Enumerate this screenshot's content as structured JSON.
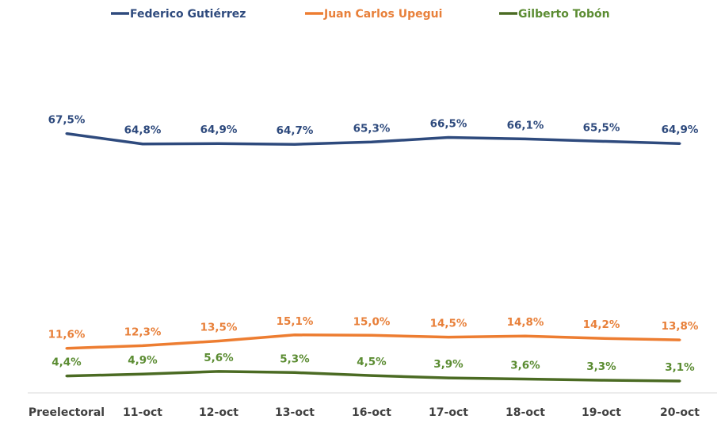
{
  "chart_data": {
    "type": "line",
    "title": "",
    "xlabel": "",
    "ylabel": "",
    "legend_position": "top",
    "grid": false,
    "ylim": [
      0,
      70
    ],
    "categories": [
      "Preelectoral",
      "11-oct",
      "12-oct",
      "13-oct",
      "16-oct",
      "17-oct",
      "18-oct",
      "19-oct",
      "20-oct"
    ],
    "series": [
      {
        "name": "Federico Gutiérrez",
        "color": "#2e4a7d",
        "label_color": "#2e4a7d",
        "values": [
          67.5,
          64.8,
          64.9,
          64.7,
          65.3,
          66.5,
          66.1,
          65.5,
          64.9
        ],
        "labels": [
          "67,5%",
          "64,8%",
          "64,9%",
          "64,7%",
          "65,3%",
          "66,5%",
          "66,1%",
          "65,5%",
          "64,9%"
        ]
      },
      {
        "name": "Juan Carlos Upegui",
        "color": "#ed7d31",
        "label_color": "#e8803a",
        "values": [
          11.6,
          12.3,
          13.5,
          15.1,
          15.0,
          14.5,
          14.8,
          14.2,
          13.8
        ],
        "labels": [
          "11,6%",
          "12,3%",
          "13,5%",
          "15,1%",
          "15,0%",
          "14,5%",
          "14,8%",
          "14,2%",
          "13,8%"
        ]
      },
      {
        "name": "Gilberto Tobón",
        "color": "#4b6b23",
        "label_color": "#5b8c32",
        "values": [
          4.4,
          4.9,
          5.6,
          5.3,
          4.5,
          3.9,
          3.6,
          3.3,
          3.1
        ],
        "labels": [
          "4,4%",
          "4,9%",
          "5,6%",
          "5,3%",
          "4,5%",
          "3,9%",
          "3,6%",
          "3,3%",
          "3,1%"
        ]
      }
    ]
  }
}
